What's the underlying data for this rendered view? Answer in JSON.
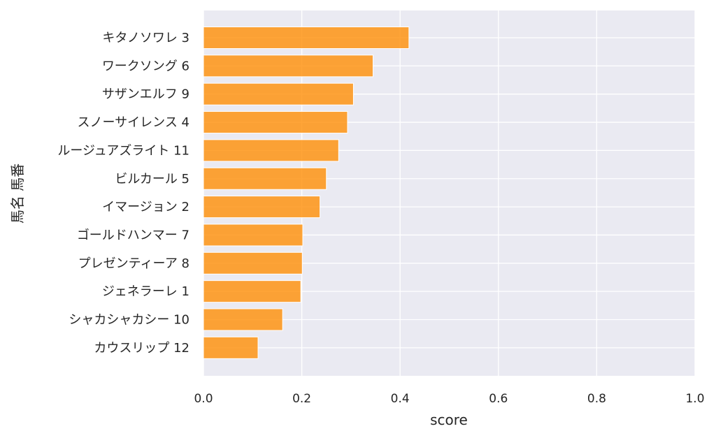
{
  "chart_data": {
    "type": "bar",
    "orientation": "horizontal",
    "categories": [
      "キタノソワレ 3",
      "ワークソング 6",
      "サザンエルフ 9",
      "スノーサイレンス 4",
      "ルージュアズライト 11",
      "ビルカール 5",
      "イマージョン 2",
      "ゴールドハンマー 7",
      "プレゼンティーア 8",
      "ジェネラーレ 1",
      "シャカシャカシー 10",
      "カウスリップ 12"
    ],
    "values": [
      0.418,
      0.345,
      0.305,
      0.293,
      0.275,
      0.25,
      0.237,
      0.202,
      0.201,
      0.198,
      0.161,
      0.111
    ],
    "xlabel": "score",
    "ylabel": "馬名 馬番",
    "xlim": [
      0.0,
      1.0
    ],
    "xticks": [
      "0.0",
      "0.2",
      "0.4",
      "0.6",
      "0.8",
      "1.0"
    ],
    "grid": true,
    "legend": "none",
    "bar_color": "#ff8c00",
    "background_color": "#eaeaf2",
    "grid_color": "#ffffff"
  }
}
